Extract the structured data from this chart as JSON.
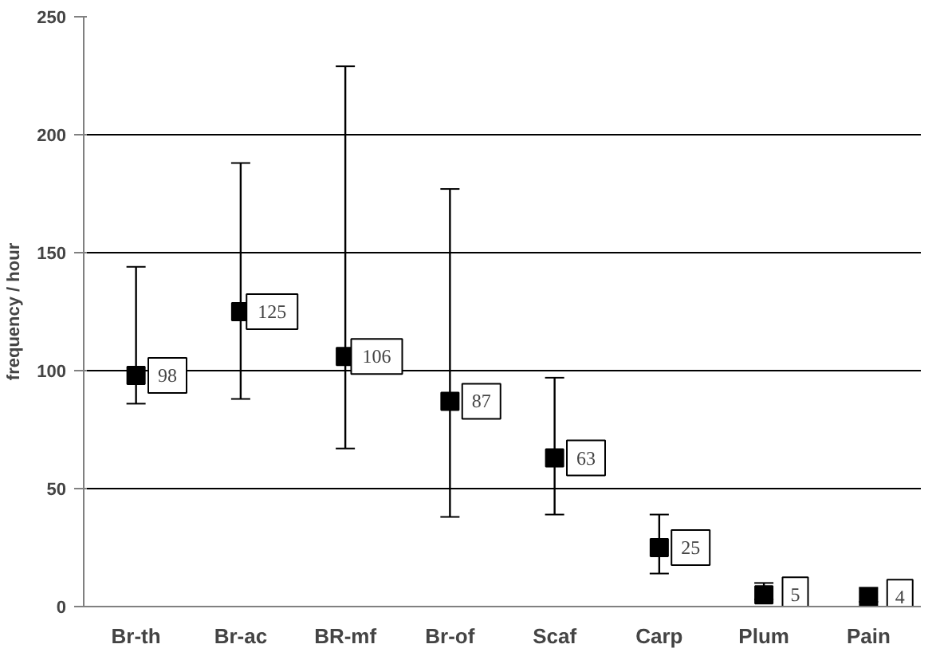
{
  "chart_data": {
    "type": "scatter",
    "ylabel": "frequency / hour",
    "categories": [
      "Br-th",
      "Br-ac",
      "BR-mf",
      "Br-of",
      "Scaf",
      "Carp",
      "Plum",
      "Pain"
    ],
    "values": [
      98,
      125,
      106,
      87,
      63,
      25,
      5,
      4
    ],
    "errors": [
      [
        86,
        144
      ],
      [
        88,
        188
      ],
      [
        67,
        229
      ],
      [
        38,
        177
      ],
      [
        39,
        97
      ],
      [
        14,
        39
      ],
      [
        3,
        10
      ],
      [
        2,
        8
      ]
    ],
    "color": "#000000",
    "marker": "square",
    "data_labels": true,
    "ylim": [
      0,
      250
    ],
    "yticks": [
      0,
      50,
      100,
      150,
      200,
      250
    ],
    "grid": "y"
  }
}
